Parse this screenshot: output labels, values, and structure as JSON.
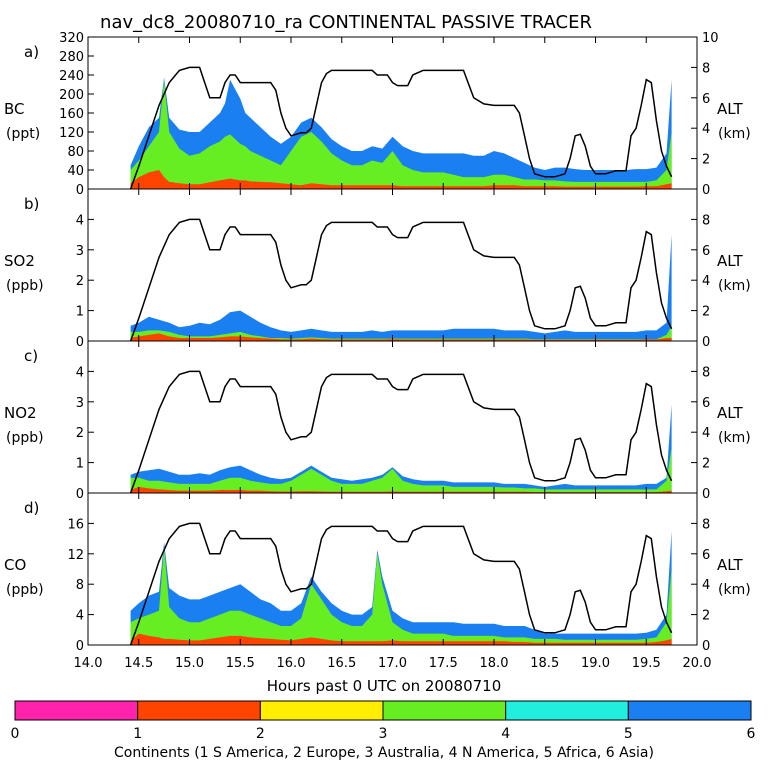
{
  "chart_data": {
    "type": "area",
    "title": "nav_dc8_20080710_ra CONTINENTAL PASSIVE TRACER",
    "xlabel": "Hours past 0 UTC on 20080710",
    "xlim": [
      14.0,
      20.0
    ],
    "xticks": [
      "14.0",
      "14.5",
      "15.0",
      "15.5",
      "16.0",
      "16.5",
      "17.0",
      "17.5",
      "18.0",
      "18.5",
      "19.0",
      "19.5",
      "20.0"
    ],
    "series_colors": {
      "S America": "#ff4400",
      "N America": "#66ee22",
      "Asia": "#1a7ff0",
      "altitude": "#000000"
    },
    "altitude": {
      "label": "ALT",
      "unit": "(km)",
      "ylim": [
        0,
        10
      ],
      "time": [
        14.42,
        14.5,
        14.6,
        14.7,
        14.8,
        14.9,
        15.0,
        15.05,
        15.1,
        15.15,
        15.2,
        15.25,
        15.3,
        15.35,
        15.4,
        15.45,
        15.5,
        15.55,
        15.6,
        15.65,
        15.7,
        15.75,
        15.8,
        15.85,
        15.9,
        15.95,
        16.0,
        16.05,
        16.1,
        16.15,
        16.2,
        16.25,
        16.3,
        16.35,
        16.4,
        16.45,
        16.5,
        16.6,
        16.7,
        16.8,
        16.85,
        16.9,
        16.95,
        17.0,
        17.05,
        17.1,
        17.15,
        17.2,
        17.3,
        17.4,
        17.5,
        17.6,
        17.65,
        17.7,
        17.8,
        17.9,
        18.0,
        18.05,
        18.1,
        18.15,
        18.2,
        18.25,
        18.3,
        18.35,
        18.4,
        18.5,
        18.6,
        18.7,
        18.75,
        18.8,
        18.85,
        18.9,
        18.95,
        19.0,
        19.1,
        19.2,
        19.3,
        19.35,
        19.4,
        19.45,
        19.5,
        19.55,
        19.6,
        19.65,
        19.7,
        19.75
      ],
      "values": [
        0,
        1.5,
        3.5,
        5.5,
        7.0,
        7.8,
        8.0,
        8.0,
        8.0,
        7.0,
        6.0,
        6.0,
        6.0,
        7.0,
        7.5,
        7.5,
        7.0,
        7.0,
        7.0,
        7.0,
        7.0,
        7.0,
        7.0,
        6.5,
        5.0,
        4.0,
        3.5,
        3.6,
        3.7,
        3.7,
        4.0,
        5.5,
        7.0,
        7.6,
        7.8,
        7.8,
        7.8,
        7.8,
        7.8,
        7.8,
        7.5,
        7.5,
        7.5,
        7.0,
        6.8,
        6.8,
        6.8,
        7.5,
        7.8,
        7.8,
        7.8,
        7.8,
        7.8,
        7.8,
        6.0,
        5.6,
        5.5,
        5.5,
        5.5,
        5.5,
        5.5,
        5.0,
        3.5,
        2.0,
        1.0,
        0.8,
        0.8,
        1.0,
        2.0,
        3.5,
        3.6,
        2.8,
        1.5,
        1.0,
        1.0,
        1.2,
        1.2,
        3.5,
        4.0,
        5.5,
        7.2,
        7.0,
        4.5,
        2.5,
        1.5,
        0.8
      ]
    },
    "panels": [
      {
        "id": "a",
        "label": "a)",
        "species": "BC",
        "unit": "(ppt)",
        "ylim": [
          0,
          320
        ],
        "yticks": [
          "0",
          "40",
          "80",
          "120",
          "160",
          "200",
          "240",
          "280",
          "320"
        ],
        "y2ticks": [
          "0",
          "2",
          "4",
          "6",
          "8",
          "10"
        ],
        "time": [
          14.42,
          14.5,
          14.6,
          14.7,
          14.75,
          14.8,
          14.9,
          15.0,
          15.1,
          15.2,
          15.3,
          15.35,
          15.4,
          15.45,
          15.5,
          15.55,
          15.6,
          15.7,
          15.8,
          15.9,
          16.0,
          16.1,
          16.2,
          16.3,
          16.4,
          16.5,
          16.6,
          16.7,
          16.8,
          16.9,
          17.0,
          17.1,
          17.2,
          17.3,
          17.4,
          17.5,
          17.6,
          17.7,
          17.8,
          17.9,
          18.0,
          18.1,
          18.2,
          18.3,
          18.4,
          18.5,
          18.6,
          18.7,
          18.8,
          18.9,
          19.0,
          19.1,
          19.2,
          19.3,
          19.4,
          19.5,
          19.6,
          19.7,
          19.75
        ],
        "s_america": [
          12,
          25,
          35,
          40,
          25,
          15,
          12,
          10,
          10,
          14,
          18,
          20,
          22,
          20,
          18,
          18,
          16,
          15,
          14,
          12,
          10,
          8,
          12,
          10,
          8,
          8,
          8,
          8,
          8,
          8,
          8,
          6,
          6,
          6,
          6,
          6,
          6,
          6,
          6,
          6,
          8,
          8,
          8,
          6,
          6,
          6,
          6,
          5,
          5,
          5,
          5,
          5,
          5,
          5,
          5,
          6,
          6,
          10,
          12
        ],
        "n_america": [
          40,
          60,
          90,
          120,
          230,
          120,
          85,
          70,
          75,
          90,
          100,
          110,
          115,
          105,
          95,
          90,
          80,
          70,
          60,
          50,
          80,
          110,
          120,
          100,
          75,
          60,
          50,
          50,
          60,
          55,
          80,
          50,
          40,
          35,
          35,
          35,
          30,
          25,
          25,
          25,
          30,
          30,
          25,
          20,
          20,
          18,
          18,
          16,
          15,
          15,
          15,
          15,
          15,
          15,
          15,
          15,
          18,
          40,
          120
        ],
        "asia": [
          50,
          90,
          130,
          150,
          235,
          150,
          125,
          120,
          120,
          140,
          160,
          180,
          230,
          210,
          190,
          160,
          150,
          130,
          110,
          95,
          110,
          140,
          150,
          130,
          105,
          90,
          80,
          80,
          90,
          85,
          110,
          90,
          80,
          75,
          75,
          75,
          75,
          75,
          70,
          70,
          80,
          75,
          65,
          55,
          45,
          40,
          45,
          45,
          42,
          40,
          40,
          40,
          40,
          40,
          42,
          42,
          45,
          75,
          230
        ]
      },
      {
        "id": "b",
        "label": "b)",
        "species": "SO2",
        "unit": "(ppb)",
        "ylim": [
          0,
          5
        ],
        "yticks": [
          "0",
          "1",
          "2",
          "3",
          "4"
        ],
        "y2ticks": [
          "0",
          "2",
          "4",
          "6",
          "8"
        ],
        "time": [
          14.42,
          14.5,
          14.6,
          14.7,
          14.8,
          14.9,
          15.0,
          15.1,
          15.2,
          15.3,
          15.4,
          15.5,
          15.6,
          15.7,
          15.8,
          15.9,
          16.0,
          16.1,
          16.2,
          16.3,
          16.4,
          16.5,
          16.6,
          16.7,
          16.8,
          16.9,
          17.0,
          17.1,
          17.2,
          17.3,
          17.4,
          17.5,
          17.6,
          17.7,
          17.8,
          17.9,
          18.0,
          18.1,
          18.2,
          18.3,
          18.4,
          18.5,
          18.6,
          18.7,
          18.8,
          18.9,
          19.0,
          19.1,
          19.2,
          19.3,
          19.4,
          19.5,
          19.6,
          19.7,
          19.75
        ],
        "s_america": [
          0.1,
          0.15,
          0.2,
          0.25,
          0.15,
          0.1,
          0.1,
          0.1,
          0.1,
          0.12,
          0.15,
          0.15,
          0.12,
          0.1,
          0.08,
          0.06,
          0.05,
          0.06,
          0.08,
          0.06,
          0.05,
          0.05,
          0.05,
          0.05,
          0.05,
          0.05,
          0.06,
          0.05,
          0.05,
          0.05,
          0.05,
          0.05,
          0.05,
          0.05,
          0.05,
          0.05,
          0.05,
          0.05,
          0.05,
          0.05,
          0.04,
          0.04,
          0.04,
          0.04,
          0.04,
          0.04,
          0.04,
          0.04,
          0.04,
          0.04,
          0.04,
          0.05,
          0.05,
          0.1,
          0.1
        ],
        "n_america": [
          0.3,
          0.3,
          0.35,
          0.35,
          0.3,
          0.2,
          0.15,
          0.15,
          0.15,
          0.2,
          0.25,
          0.3,
          0.2,
          0.15,
          0.1,
          0.1,
          0.08,
          0.1,
          0.12,
          0.1,
          0.08,
          0.08,
          0.08,
          0.08,
          0.08,
          0.08,
          0.08,
          0.08,
          0.08,
          0.08,
          0.08,
          0.08,
          0.08,
          0.08,
          0.08,
          0.08,
          0.08,
          0.08,
          0.08,
          0.08,
          0.06,
          0.06,
          0.06,
          0.06,
          0.06,
          0.06,
          0.06,
          0.06,
          0.06,
          0.06,
          0.06,
          0.06,
          0.06,
          0.2,
          0.5
        ],
        "asia": [
          0.5,
          0.6,
          0.8,
          0.7,
          0.6,
          0.45,
          0.5,
          0.6,
          0.55,
          0.7,
          0.95,
          1.0,
          0.8,
          0.6,
          0.45,
          0.35,
          0.3,
          0.35,
          0.4,
          0.35,
          0.3,
          0.3,
          0.3,
          0.3,
          0.35,
          0.3,
          0.35,
          0.35,
          0.35,
          0.35,
          0.35,
          0.35,
          0.4,
          0.4,
          0.4,
          0.4,
          0.4,
          0.35,
          0.35,
          0.35,
          0.3,
          0.25,
          0.3,
          0.35,
          0.3,
          0.3,
          0.3,
          0.3,
          0.3,
          0.3,
          0.3,
          0.35,
          0.35,
          0.6,
          3.5
        ]
      },
      {
        "id": "c",
        "label": "c)",
        "species": "NO2",
        "unit": "(ppb)",
        "ylim": [
          0,
          5
        ],
        "yticks": [
          "0",
          "1",
          "2",
          "3",
          "4"
        ],
        "y2ticks": [
          "0",
          "2",
          "4",
          "6",
          "8"
        ],
        "time": [
          14.42,
          14.5,
          14.6,
          14.7,
          14.8,
          14.9,
          15.0,
          15.1,
          15.2,
          15.3,
          15.4,
          15.5,
          15.6,
          15.7,
          15.8,
          15.9,
          16.0,
          16.1,
          16.2,
          16.3,
          16.4,
          16.5,
          16.6,
          16.7,
          16.8,
          16.9,
          17.0,
          17.1,
          17.2,
          17.3,
          17.4,
          17.5,
          17.6,
          17.7,
          17.8,
          17.9,
          18.0,
          18.1,
          18.2,
          18.3,
          18.4,
          18.5,
          18.6,
          18.7,
          18.8,
          18.9,
          19.0,
          19.1,
          19.2,
          19.3,
          19.4,
          19.5,
          19.6,
          19.7,
          19.75
        ],
        "s_america": [
          0.1,
          0.2,
          0.15,
          0.12,
          0.1,
          0.08,
          0.08,
          0.08,
          0.08,
          0.1,
          0.1,
          0.1,
          0.08,
          0.08,
          0.06,
          0.05,
          0.05,
          0.06,
          0.06,
          0.05,
          0.04,
          0.04,
          0.04,
          0.04,
          0.04,
          0.04,
          0.05,
          0.04,
          0.04,
          0.04,
          0.04,
          0.04,
          0.04,
          0.04,
          0.04,
          0.04,
          0.04,
          0.04,
          0.04,
          0.04,
          0.03,
          0.03,
          0.03,
          0.03,
          0.03,
          0.03,
          0.03,
          0.03,
          0.03,
          0.03,
          0.03,
          0.03,
          0.03,
          0.06,
          0.08
        ],
        "n_america": [
          0.5,
          0.5,
          0.4,
          0.4,
          0.35,
          0.3,
          0.3,
          0.3,
          0.3,
          0.4,
          0.5,
          0.5,
          0.4,
          0.35,
          0.3,
          0.3,
          0.4,
          0.6,
          0.8,
          0.6,
          0.4,
          0.3,
          0.3,
          0.3,
          0.4,
          0.5,
          0.8,
          0.4,
          0.3,
          0.25,
          0.25,
          0.25,
          0.2,
          0.2,
          0.2,
          0.2,
          0.2,
          0.18,
          0.18,
          0.15,
          0.15,
          0.12,
          0.12,
          0.12,
          0.12,
          0.12,
          0.12,
          0.12,
          0.12,
          0.12,
          0.12,
          0.12,
          0.12,
          0.4,
          1.5
        ],
        "asia": [
          0.6,
          0.7,
          0.75,
          0.8,
          0.7,
          0.6,
          0.6,
          0.65,
          0.6,
          0.75,
          0.85,
          0.9,
          0.75,
          0.6,
          0.5,
          0.45,
          0.5,
          0.7,
          0.9,
          0.7,
          0.5,
          0.45,
          0.4,
          0.45,
          0.5,
          0.6,
          0.85,
          0.55,
          0.45,
          0.4,
          0.4,
          0.4,
          0.35,
          0.35,
          0.35,
          0.35,
          0.35,
          0.3,
          0.3,
          0.3,
          0.25,
          0.2,
          0.25,
          0.3,
          0.25,
          0.25,
          0.25,
          0.25,
          0.25,
          0.25,
          0.25,
          0.3,
          0.3,
          0.5,
          2.9
        ]
      },
      {
        "id": "d",
        "label": "d)",
        "species": "CO",
        "unit": "(ppb)",
        "ylim": [
          0,
          20
        ],
        "yticks": [
          "0",
          "4",
          "8",
          "12",
          "16"
        ],
        "y2ticks": [
          "0",
          "2",
          "4",
          "6",
          "8"
        ],
        "time": [
          14.42,
          14.5,
          14.6,
          14.7,
          14.75,
          14.8,
          14.9,
          15.0,
          15.1,
          15.2,
          15.3,
          15.4,
          15.5,
          15.6,
          15.7,
          15.8,
          15.9,
          16.0,
          16.1,
          16.2,
          16.3,
          16.4,
          16.5,
          16.6,
          16.7,
          16.8,
          16.85,
          16.9,
          17.0,
          17.1,
          17.2,
          17.3,
          17.4,
          17.5,
          17.6,
          17.7,
          17.8,
          17.9,
          18.0,
          18.1,
          18.2,
          18.3,
          18.4,
          18.5,
          18.6,
          18.7,
          18.8,
          18.9,
          19.0,
          19.1,
          19.2,
          19.3,
          19.4,
          19.5,
          19.6,
          19.7,
          19.75
        ],
        "s_america": [
          0.5,
          1.5,
          1.2,
          1.0,
          0.8,
          0.8,
          0.7,
          0.6,
          0.6,
          0.8,
          1.0,
          1.2,
          1.2,
          1.0,
          0.9,
          0.8,
          0.7,
          0.6,
          0.8,
          1.0,
          0.8,
          0.6,
          0.5,
          0.5,
          0.5,
          0.5,
          0.5,
          0.5,
          0.6,
          0.5,
          0.5,
          0.5,
          0.5,
          0.5,
          0.5,
          0.5,
          0.5,
          0.5,
          0.5,
          0.5,
          0.4,
          0.4,
          0.3,
          0.3,
          0.3,
          0.3,
          0.3,
          0.3,
          0.3,
          0.3,
          0.3,
          0.3,
          0.3,
          0.3,
          0.4,
          0.6,
          0.8
        ],
        "n_america": [
          3.0,
          3.5,
          4.0,
          4.5,
          13.0,
          5.0,
          3.5,
          3.0,
          3.0,
          3.5,
          4.0,
          4.5,
          4.5,
          4.0,
          3.5,
          3.0,
          2.5,
          2.5,
          3.5,
          8.0,
          6.0,
          4.0,
          3.0,
          2.5,
          2.5,
          4.0,
          12.0,
          8.0,
          3.0,
          2.0,
          1.5,
          1.5,
          1.5,
          1.5,
          1.2,
          1.2,
          1.2,
          1.2,
          1.2,
          1.0,
          1.0,
          1.0,
          0.8,
          0.8,
          0.8,
          0.7,
          0.7,
          0.7,
          0.7,
          0.7,
          0.7,
          0.7,
          0.7,
          0.8,
          1.0,
          3.0,
          10.0
        ],
        "asia": [
          4.5,
          5.5,
          6.5,
          7.0,
          13.5,
          7.5,
          6.5,
          6.0,
          6.0,
          6.5,
          7.0,
          7.5,
          8.0,
          7.0,
          6.0,
          5.5,
          4.5,
          4.5,
          5.5,
          9.0,
          7.0,
          5.5,
          4.5,
          4.0,
          4.0,
          5.0,
          12.5,
          9.0,
          4.5,
          3.5,
          3.0,
          3.0,
          3.0,
          3.0,
          3.0,
          2.8,
          2.8,
          2.8,
          2.8,
          2.5,
          2.5,
          2.5,
          2.0,
          1.5,
          1.5,
          1.5,
          1.5,
          1.5,
          1.5,
          1.5,
          1.5,
          1.5,
          1.5,
          1.6,
          2.0,
          4.0,
          15.0
        ]
      }
    ],
    "colorbar": {
      "label": "Continents (1 S America, 2 Europe, 3 Australia, 4 N America, 5 Africa, 6 Asia)",
      "ticks": [
        "0",
        "1",
        "2",
        "3",
        "4",
        "5",
        "6"
      ],
      "colors": [
        "#ff22aa",
        "#ff4400",
        "#ffee00",
        "#66ee22",
        "#22eedd",
        "#1a7ff0"
      ]
    }
  }
}
